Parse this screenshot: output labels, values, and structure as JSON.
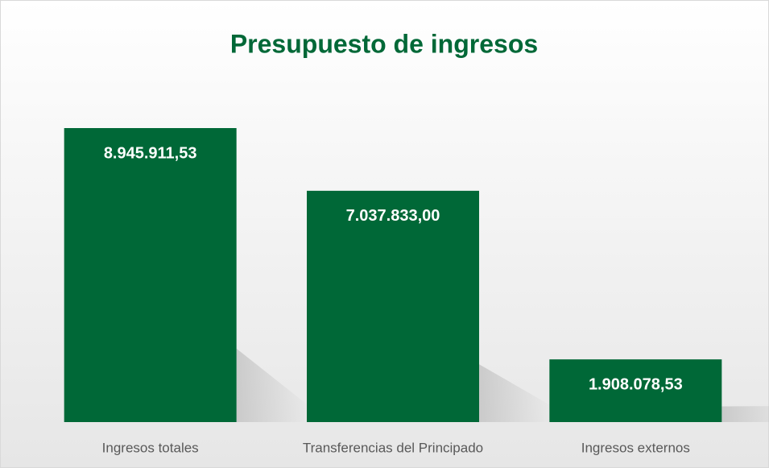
{
  "chart_data": {
    "type": "bar",
    "title": "Presupuesto de ingresos",
    "categories": [
      "Ingresos totales",
      "Transferencias del Principado",
      "Ingresos externos"
    ],
    "values": [
      8945911.53,
      7037833.0,
      1908078.53
    ],
    "value_labels": [
      "8.945.911,53",
      "7.037.833,00",
      "1.908.078,53"
    ],
    "color": "#006837"
  }
}
